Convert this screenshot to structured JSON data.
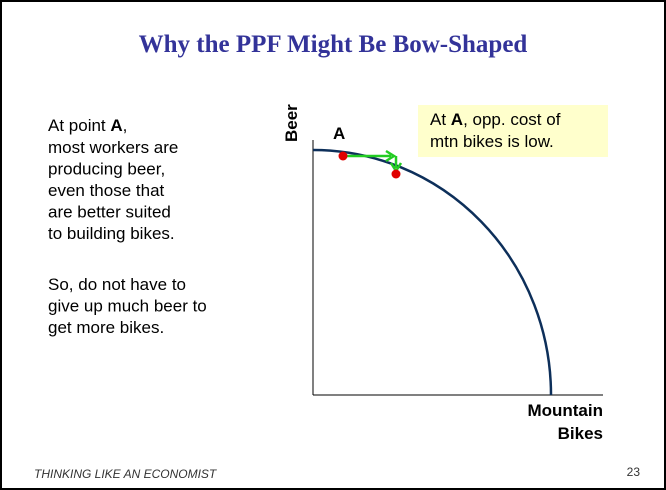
{
  "title": "Why the PPF Might Be Bow-Shaped",
  "body": {
    "p1": {
      "prefix": "At point ",
      "bold": "A",
      "suffix": ",",
      "lines": [
        "most workers are",
        "producing beer,",
        "even those that",
        "are better suited",
        "to building bikes."
      ]
    },
    "p2": {
      "lines": [
        "So, do not have to",
        "give up much beer to",
        "get more bikes."
      ]
    }
  },
  "diagram": {
    "y_axis_label": "Beer",
    "x_axis_label": [
      "Mountain",
      "Bikes"
    ],
    "point_label": "A",
    "callout": {
      "prefix": "At ",
      "bold": "A",
      "suffix": ", opp. cost of",
      "line2": "mtn bikes is low."
    }
  },
  "footer": {
    "text": "THINKING LIKE AN ECONOMIST",
    "page": "23"
  }
}
